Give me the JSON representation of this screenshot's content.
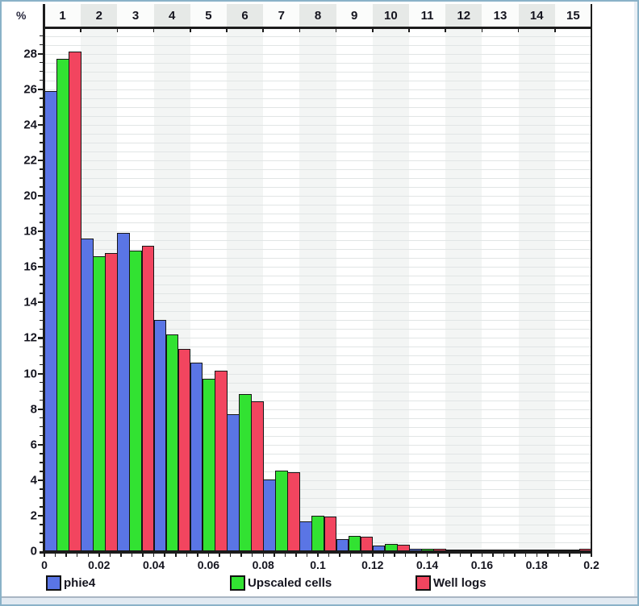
{
  "window": {
    "frame_border_color": "#8ab2c8",
    "panel_bg": "#ffffff",
    "strip_bg": "#e2eaf2"
  },
  "chart_data": {
    "type": "bar",
    "subtype": "histogram",
    "title": "",
    "ylabel": "%",
    "xlabel": "",
    "bins": 15,
    "x_range": [
      0,
      0.2
    ],
    "bin_width": 0.01333,
    "top_bin_labels": [
      "1",
      "2",
      "3",
      "4",
      "5",
      "6",
      "7",
      "8",
      "9",
      "10",
      "11",
      "12",
      "13",
      "14",
      "15"
    ],
    "x_tick_labels": [
      "0",
      "0.02",
      "0.04",
      "0.06",
      "0.08",
      "0.1",
      "0.12",
      "0.14",
      "0.16",
      "0.18",
      "0.2"
    ],
    "x_minor_tick_step": 0.004,
    "y_tick_labels": [
      "0",
      "2",
      "4",
      "6",
      "8",
      "10",
      "12",
      "14",
      "16",
      "18",
      "20",
      "22",
      "24",
      "26",
      "28"
    ],
    "y_major_step": 2,
    "y_minor_step": 0.5,
    "ylim": [
      0,
      29.2
    ],
    "grid": "horizontal-minor",
    "legend_position": "bottom",
    "series": [
      {
        "name": "phie4",
        "color": "#5a75e5",
        "values": [
          25.9,
          17.6,
          17.9,
          13.0,
          10.6,
          7.7,
          4.05,
          1.7,
          0.7,
          0.3,
          0.12,
          0.05,
          0.03,
          0.02,
          0.03
        ]
      },
      {
        "name": "Upscaled cells",
        "color": "#32e232",
        "values": [
          27.7,
          16.6,
          16.9,
          12.2,
          9.7,
          8.85,
          4.55,
          2.0,
          0.85,
          0.4,
          0.15,
          0.06,
          0.03,
          0.03,
          0.04
        ]
      },
      {
        "name": "Well logs",
        "color": "#f2455f",
        "values": [
          28.1,
          16.8,
          17.2,
          11.4,
          10.15,
          8.45,
          4.45,
          1.95,
          0.8,
          0.35,
          0.13,
          0.05,
          0.03,
          0.03,
          0.12
        ]
      }
    ],
    "header_band_even_color": "#e6e9e7",
    "plot_band_even_color": "#f3f5f4",
    "axis_color": "#1c1c1c",
    "gridline_color": "#e1e5e5",
    "text_color": "#15151f"
  }
}
